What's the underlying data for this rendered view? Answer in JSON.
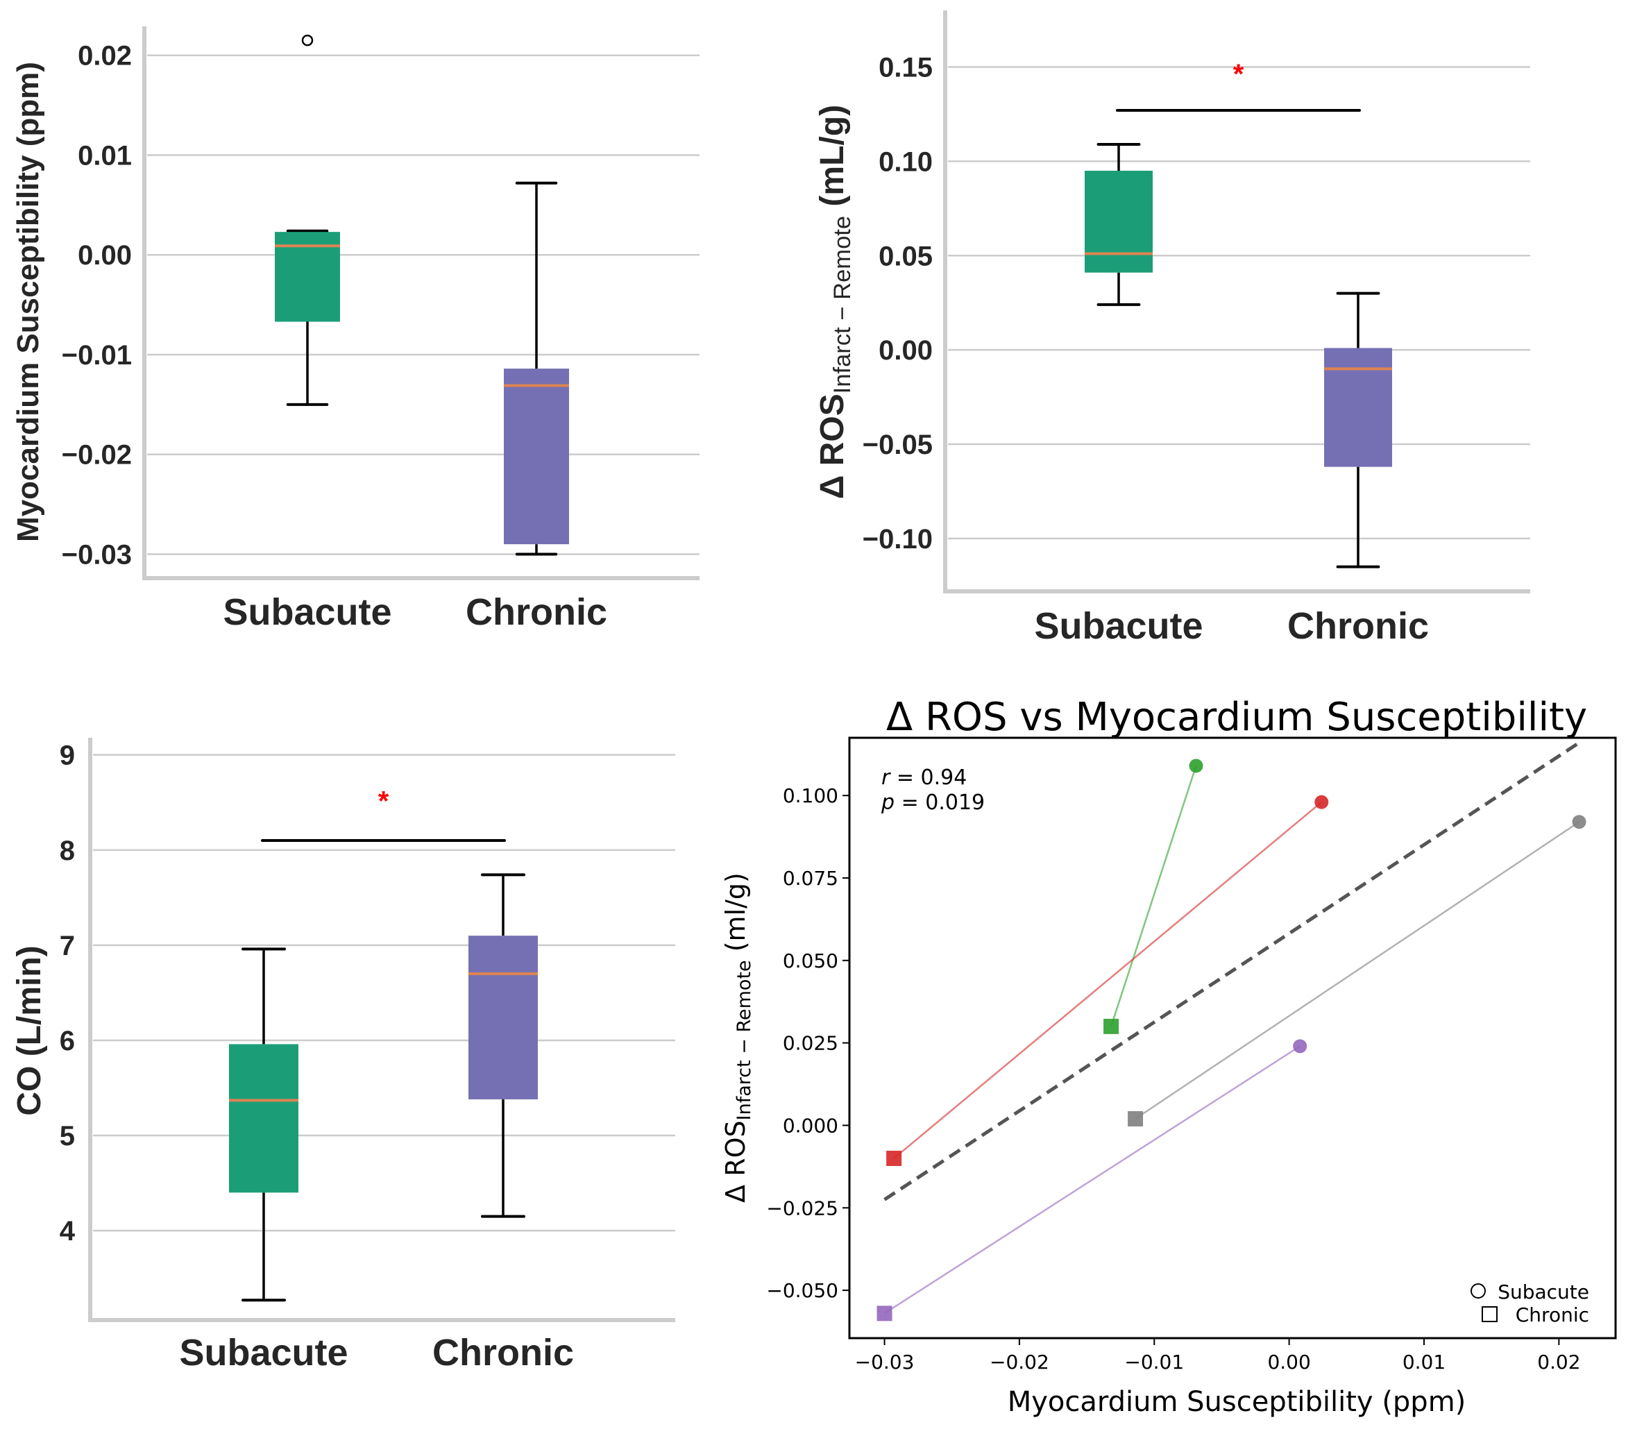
{
  "figure": {
    "panels": [
      "susceptibility-boxplot",
      "ros-boxplot",
      "co-boxplot",
      "ros-vs-susceptibility-scatter"
    ]
  },
  "chart_data": [
    {
      "id": "susceptibility",
      "type": "box",
      "title": "",
      "xlabel": "",
      "ylabel": "Myocardium Susceptibility (ppm)",
      "categories": [
        "Subacute",
        "Chronic"
      ],
      "colors": [
        "#1b9e77",
        "#7570b3"
      ],
      "median_color": "#dd8452",
      "ylim": [
        -0.0324,
        0.0229
      ],
      "yticks": [
        0.02,
        0.01,
        0.0,
        -0.01,
        -0.02,
        -0.03
      ],
      "ytick_labels": [
        "0.02",
        "0.01",
        "0.00",
        "−0.01",
        "−0.02",
        "−0.03"
      ],
      "grid": true,
      "boxes": [
        {
          "name": "Subacute",
          "whisker_low": -0.015,
          "q1": -0.0067,
          "median": 0.0009,
          "q3": 0.0023,
          "whisker_high": 0.0024,
          "outliers": [
            0.0215
          ]
        },
        {
          "name": "Chronic",
          "whisker_low": -0.03,
          "q1": -0.029,
          "median": -0.0131,
          "q3": -0.0114,
          "whisker_high": 0.0072,
          "outliers": []
        }
      ],
      "significance": null
    },
    {
      "id": "ros",
      "type": "box",
      "title": "",
      "xlabel": "",
      "ylabel_main": "Δ ROS",
      "ylabel_sub": "Infarct − Remote",
      "ylabel_unit": " (mL/g)",
      "categories": [
        "Subacute",
        "Chronic"
      ],
      "colors": [
        "#1b9e77",
        "#7570b3"
      ],
      "median_color": "#dd8452",
      "ylim": [
        -0.128,
        0.18
      ],
      "yticks": [
        0.15,
        0.1,
        0.05,
        0.0,
        -0.05,
        -0.1
      ],
      "ytick_labels": [
        "0.15",
        "0.10",
        "0.05",
        "0.00",
        "−0.05",
        "−0.10"
      ],
      "grid": true,
      "boxes": [
        {
          "name": "Subacute",
          "whisker_low": 0.024,
          "q1": 0.041,
          "median": 0.051,
          "q3": 0.095,
          "whisker_high": 0.109,
          "outliers": []
        },
        {
          "name": "Chronic",
          "whisker_low": -0.115,
          "q1": -0.062,
          "median": -0.01,
          "q3": 0.001,
          "whisker_high": 0.03,
          "outliers": []
        }
      ],
      "significance": {
        "bar_y": 0.127,
        "star_y": 0.148,
        "label": "*",
        "color": "#ff0000"
      }
    },
    {
      "id": "co",
      "type": "box",
      "title": "",
      "xlabel": "",
      "ylabel": "CO (L/min)",
      "categories": [
        "Subacute",
        "Chronic"
      ],
      "colors": [
        "#1b9e77",
        "#7570b3"
      ],
      "median_color": "#dd8452",
      "ylim": [
        3.06,
        9.18
      ],
      "yticks": [
        9,
        8,
        7,
        6,
        5,
        4
      ],
      "ytick_labels": [
        "9",
        "8",
        "7",
        "6",
        "5",
        "4"
      ],
      "grid": true,
      "boxes": [
        {
          "name": "Subacute",
          "whisker_low": 3.27,
          "q1": 4.4,
          "median": 5.37,
          "q3": 5.96,
          "whisker_high": 6.96,
          "outliers": []
        },
        {
          "name": "Chronic",
          "whisker_low": 4.15,
          "q1": 5.38,
          "median": 6.7,
          "q3": 7.1,
          "whisker_high": 7.74,
          "outliers": []
        }
      ],
      "significance": {
        "bar_y": 8.1,
        "star_y": 8.55,
        "label": "*",
        "color": "#ff0000"
      }
    },
    {
      "id": "scatter",
      "type": "scatter",
      "title": "Δ ROS vs Myocardium Susceptibility",
      "xlabel": "Myocardium Susceptibility (ppm)",
      "ylabel_main": "Δ ROS",
      "ylabel_sub": "Infarct − Remote",
      "ylabel_unit": " (ml/g)",
      "xlim": [
        -0.0326,
        0.0242
      ],
      "ylim": [
        -0.0645,
        0.1175
      ],
      "xticks": [
        -0.03,
        -0.02,
        -0.01,
        0.0,
        0.01,
        0.02
      ],
      "xtick_labels": [
        "−0.03",
        "−0.02",
        "−0.01",
        "0.00",
        "0.01",
        "0.02"
      ],
      "yticks": [
        0.1,
        0.075,
        0.05,
        0.025,
        0.0,
        -0.025,
        -0.05
      ],
      "ytick_labels": [
        "0.100",
        "0.075",
        "0.050",
        "0.025",
        "0.000",
        "−0.025",
        "−0.050"
      ],
      "grid": false,
      "annotation": {
        "r_label": "r",
        "r_value": "= 0.94",
        "p_label": "p",
        "p_value": "= 0.019"
      },
      "legend": {
        "position": "bottom-right",
        "entries": [
          {
            "marker": "circle",
            "label": "Subacute"
          },
          {
            "marker": "square",
            "label": "Chronic"
          }
        ]
      },
      "subjects": [
        {
          "color": "#2ca02c",
          "subacute": {
            "x": -0.0069,
            "y": 0.109
          },
          "chronic": {
            "x": -0.0132,
            "y": 0.03
          }
        },
        {
          "color": "#d62728",
          "subacute": {
            "x": 0.0024,
            "y": 0.098
          },
          "chronic": {
            "x": -0.0293,
            "y": -0.01
          }
        },
        {
          "color": "#7f7f7f",
          "subacute": {
            "x": 0.0215,
            "y": 0.092
          },
          "chronic": {
            "x": -0.0114,
            "y": 0.002
          }
        },
        {
          "color": "#9467bd",
          "subacute": {
            "x": 0.0008,
            "y": 0.024
          },
          "chronic": {
            "x": -0.03,
            "y": -0.057
          }
        }
      ],
      "regression": {
        "x": [
          -0.03,
          0.0215
        ],
        "y": [
          -0.0225,
          0.116
        ],
        "color": "#555555",
        "style": "dashed"
      }
    }
  ]
}
